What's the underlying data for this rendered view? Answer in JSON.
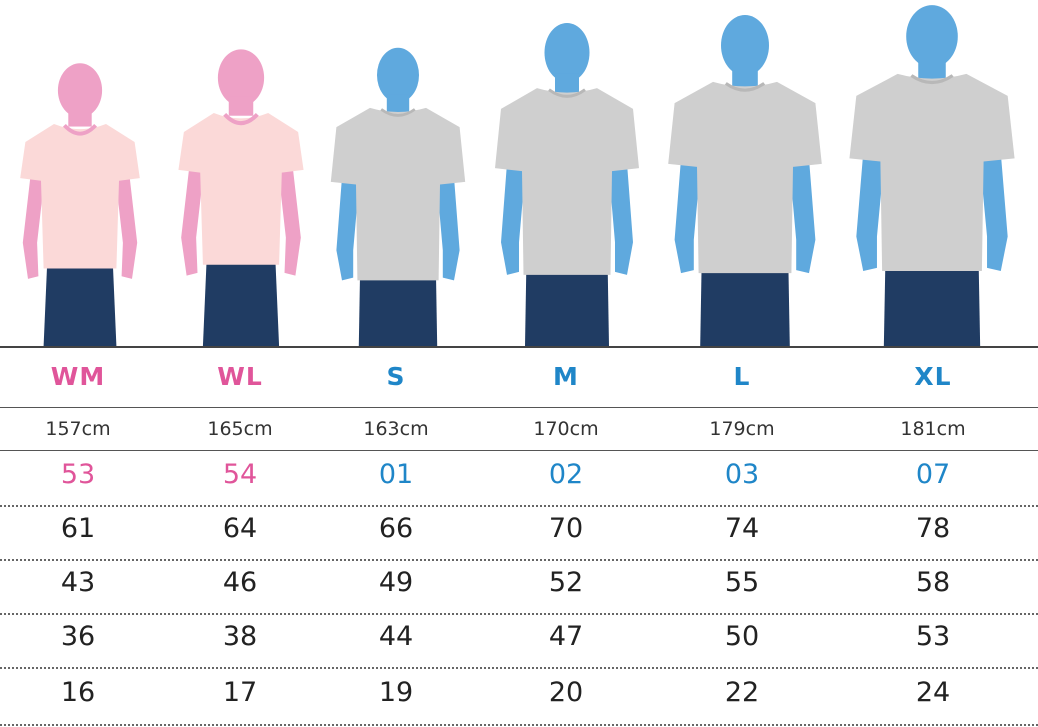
{
  "colors": {
    "women": "#e0559a",
    "men": "#1f86c8",
    "women_skin": "#eea1c6",
    "men_skin": "#5fa9de",
    "women_shirt": "#fbd9d8",
    "men_shirt": "#cfcfcf",
    "jeans": "#203c63"
  },
  "figures": [
    {
      "gender": "women",
      "icon": "female-silhouette-icon"
    },
    {
      "gender": "women",
      "icon": "female-silhouette-icon"
    },
    {
      "gender": "men",
      "icon": "male-silhouette-icon"
    },
    {
      "gender": "men",
      "icon": "male-silhouette-icon"
    },
    {
      "gender": "men",
      "icon": "male-silhouette-icon"
    },
    {
      "gender": "men",
      "icon": "male-silhouette-icon"
    }
  ],
  "sizes": [
    {
      "label": "WM",
      "height": "157cm",
      "code": "53",
      "gender": "women"
    },
    {
      "label": "WL",
      "height": "165cm",
      "code": "54",
      "gender": "women"
    },
    {
      "label": "S",
      "height": "163cm",
      "code": "01",
      "gender": "men"
    },
    {
      "label": "M",
      "height": "170cm",
      "code": "02",
      "gender": "men"
    },
    {
      "label": "L",
      "height": "179cm",
      "code": "03",
      "gender": "men"
    },
    {
      "label": "XL",
      "height": "181cm",
      "code": "07",
      "gender": "men"
    }
  ],
  "measurements": [
    [
      "61",
      "64",
      "66",
      "70",
      "74",
      "78"
    ],
    [
      "43",
      "46",
      "49",
      "52",
      "55",
      "58"
    ],
    [
      "36",
      "38",
      "44",
      "47",
      "50",
      "53"
    ],
    [
      "16",
      "17",
      "19",
      "20",
      "22",
      "24"
    ]
  ]
}
